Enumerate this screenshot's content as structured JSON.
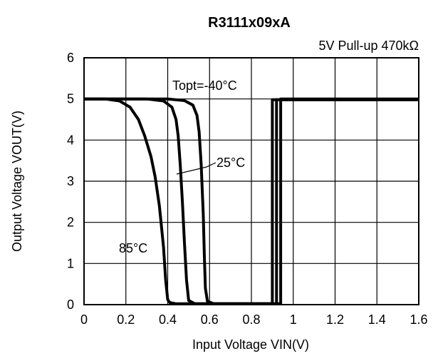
{
  "chart_data": {
    "type": "line",
    "title": "R3111x09xA",
    "subtitle": "5V Pull-up 470kΩ",
    "xlabel": "Input Voltage VIN(V)",
    "ylabel": "Output Voltage VOUT(V)",
    "xlim": [
      0,
      1.6
    ],
    "ylim": [
      0,
      6
    ],
    "xticks": [
      "0",
      "0.2",
      "0.4",
      "0.6",
      "0.8",
      "1",
      "1.2",
      "1.4",
      "1.6"
    ],
    "yticks": [
      "0",
      "1",
      "2",
      "3",
      "4",
      "5",
      "6"
    ],
    "grid": true,
    "annotations": {
      "cold": "Topt=-40°C",
      "room": "25°C",
      "hot": "85°C"
    },
    "series": [
      {
        "name": "Topt=-40°C",
        "x": [
          0,
          0.2,
          0.4,
          0.48,
          0.52,
          0.54,
          0.55,
          0.56,
          0.57,
          0.575,
          0.58,
          0.59,
          0.62,
          0.94,
          0.94,
          1.6
        ],
        "y": [
          5.0,
          5.0,
          5.0,
          4.96,
          4.85,
          4.6,
          4.2,
          3.4,
          2.2,
          1.2,
          0.4,
          0.08,
          0.02,
          0.02,
          5.0,
          5.0
        ]
      },
      {
        "name": "25°C",
        "x": [
          0,
          0.2,
          0.3,
          0.38,
          0.42,
          0.44,
          0.45,
          0.46,
          0.47,
          0.48,
          0.49,
          0.5,
          0.53,
          0.92,
          0.92,
          1.6
        ],
        "y": [
          5.0,
          5.0,
          5.0,
          4.95,
          4.8,
          4.5,
          4.1,
          3.4,
          2.5,
          1.5,
          0.6,
          0.1,
          0.02,
          0.02,
          4.98,
          4.98
        ]
      },
      {
        "name": "85°C",
        "x": [
          0,
          0.1,
          0.17,
          0.22,
          0.26,
          0.29,
          0.32,
          0.34,
          0.36,
          0.38,
          0.39,
          0.4,
          0.41,
          0.44,
          0.9,
          0.9,
          1.6
        ],
        "y": [
          5.0,
          5.0,
          4.95,
          4.8,
          4.5,
          4.1,
          3.6,
          3.1,
          2.4,
          1.4,
          0.6,
          0.12,
          0.05,
          0.02,
          0.02,
          4.98,
          4.98
        ]
      }
    ]
  }
}
